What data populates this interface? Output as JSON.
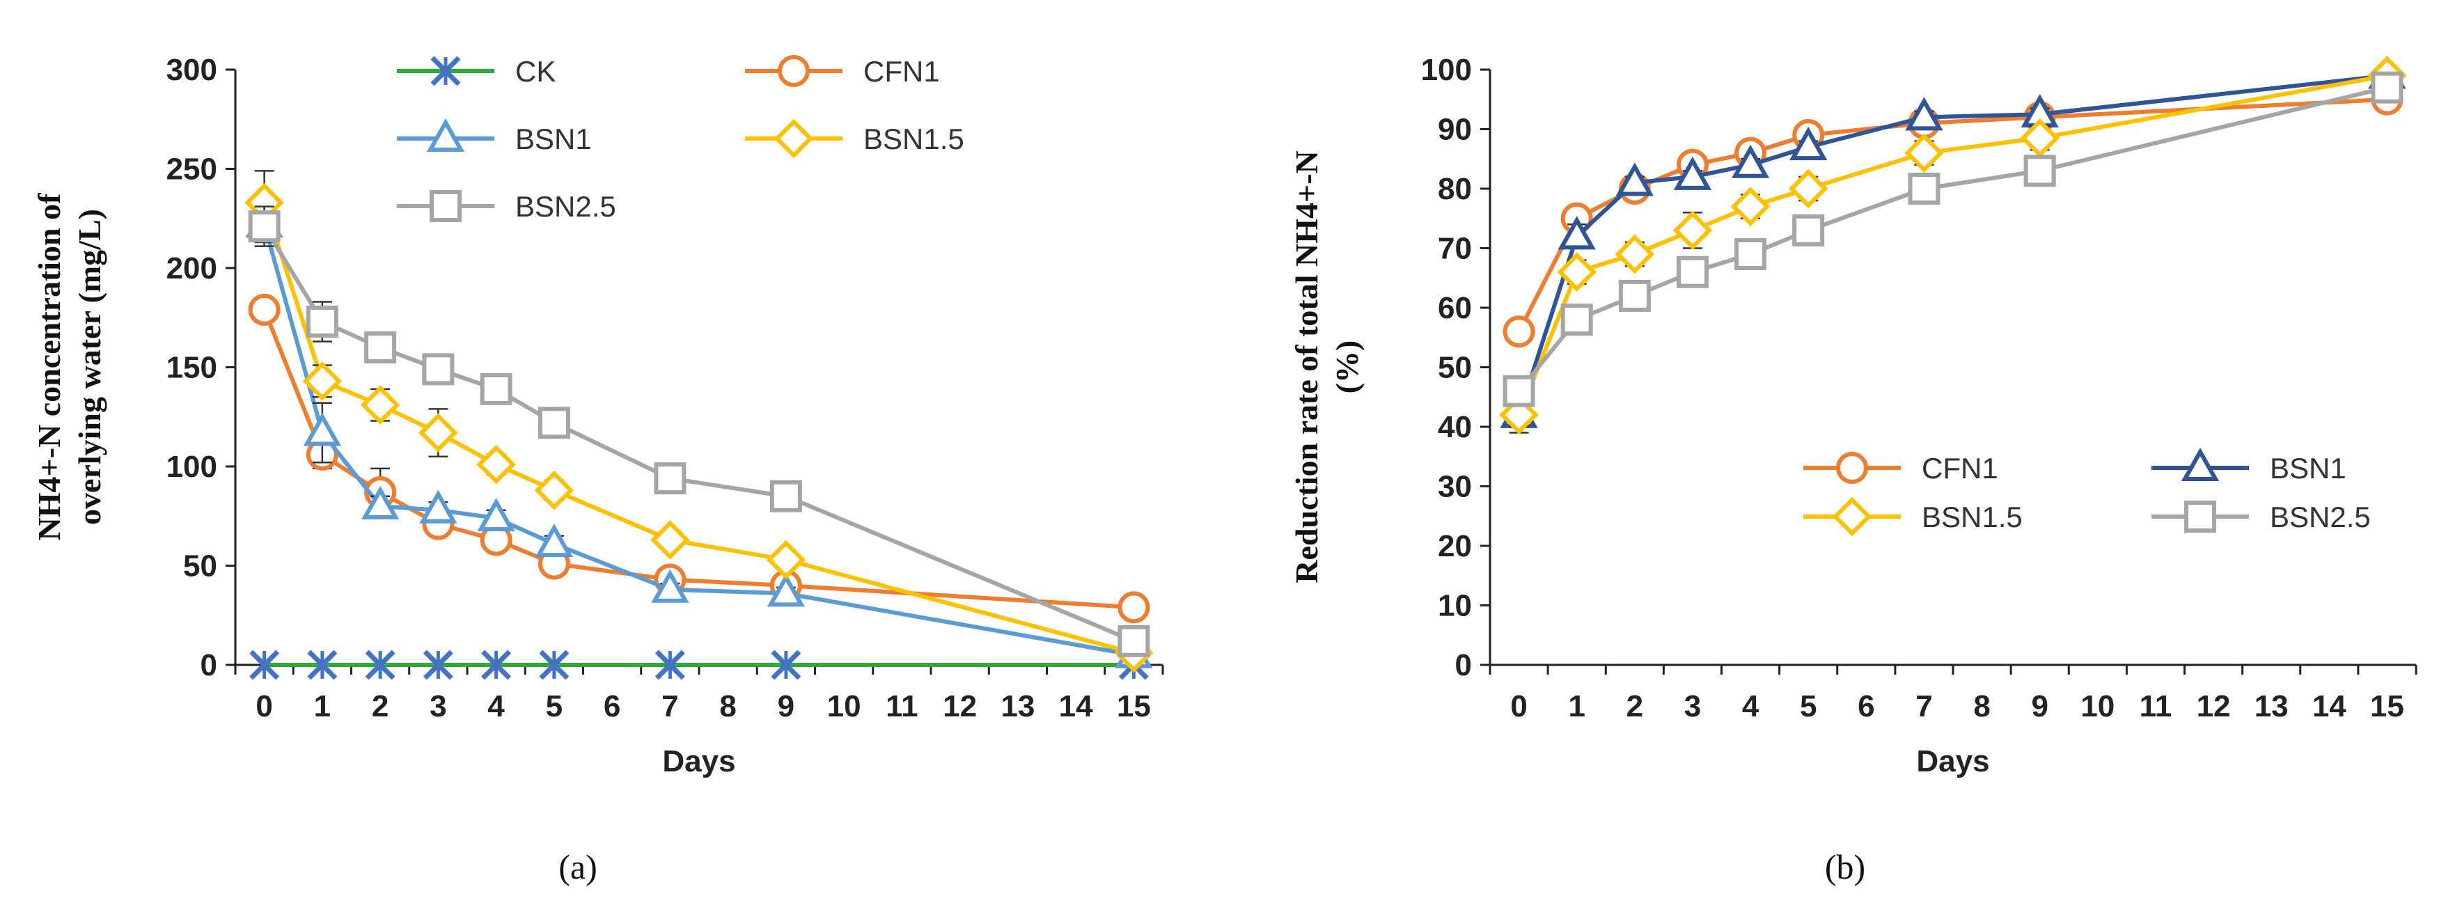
{
  "chart_data": [
    {
      "type": "line",
      "panel_label": "(a)",
      "xlabel": "Days",
      "ylabel_line1": "NH4+-N concentration of",
      "ylabel_line2": "overlying water (mg/L)",
      "categories": [
        "0",
        "1",
        "2",
        "3",
        "4",
        "5",
        "6",
        "7",
        "8",
        "9",
        "10",
        "11",
        "12",
        "13",
        "14",
        "15"
      ],
      "yticks": [
        "0",
        "50",
        "100",
        "150",
        "200",
        "250",
        "300"
      ],
      "ylim": [
        0,
        300
      ],
      "legend_position": "top",
      "series": [
        {
          "name": "CK",
          "color": "#2DAA3A",
          "marker": "x",
          "marker_color": "#4472C4",
          "x": [
            0,
            1,
            2,
            3,
            4,
            5,
            7,
            9,
            15
          ],
          "values": [
            0,
            0,
            0,
            0,
            0,
            0,
            0,
            0,
            0
          ],
          "err": [
            0,
            0,
            0,
            0,
            0,
            0,
            0,
            0,
            0
          ]
        },
        {
          "name": "CFN1",
          "color": "#ED7D31",
          "marker": "circle",
          "x": [
            0,
            1,
            2,
            3,
            4,
            5,
            7,
            9,
            15
          ],
          "values": [
            179,
            106,
            87,
            71,
            63,
            51,
            43,
            40,
            29
          ],
          "err": [
            0,
            7,
            12,
            5,
            5,
            3,
            4,
            3,
            2
          ]
        },
        {
          "name": "BSN1",
          "color": "#5B9BD5",
          "marker": "triangle",
          "x": [
            0,
            1,
            2,
            3,
            4,
            5,
            7,
            9,
            15
          ],
          "values": [
            222,
            117,
            80,
            78,
            74,
            61,
            38,
            36,
            5
          ],
          "err": [
            9,
            15,
            5,
            4,
            4,
            4,
            3,
            3,
            1
          ]
        },
        {
          "name": "BSN1.5",
          "color": "#FFC000",
          "marker": "diamond",
          "x": [
            0,
            1,
            2,
            3,
            4,
            5,
            7,
            9,
            15
          ],
          "values": [
            233,
            143,
            131,
            117,
            101,
            88,
            63,
            53,
            6
          ],
          "err": [
            16,
            8,
            8,
            12,
            5,
            5,
            4,
            4,
            1
          ]
        },
        {
          "name": "BSN2.5",
          "color": "#A5A5A5",
          "marker": "square",
          "x": [
            0,
            1,
            2,
            3,
            4,
            5,
            7,
            9,
            15
          ],
          "values": [
            221,
            173,
            160,
            149,
            139,
            122,
            94,
            85,
            12
          ],
          "err": [
            10,
            10,
            4,
            5,
            4,
            4,
            4,
            3,
            2
          ]
        }
      ]
    },
    {
      "type": "line",
      "panel_label": "(b)",
      "xlabel": "Days",
      "ylabel_line1": "Reduction rate of total NH4+-N",
      "ylabel_line2": "(%)",
      "categories": [
        "0",
        "1",
        "2",
        "3",
        "4",
        "5",
        "6",
        "7",
        "8",
        "9",
        "10",
        "11",
        "12",
        "13",
        "14",
        "15"
      ],
      "yticks": [
        "0",
        "10",
        "20",
        "30",
        "40",
        "50",
        "60",
        "70",
        "80",
        "90",
        "100"
      ],
      "ylim": [
        0,
        100
      ],
      "legend_position": "bottom-right",
      "series": [
        {
          "name": "CFN1",
          "color": "#ED7D31",
          "marker": "circle",
          "x": [
            0,
            1,
            2,
            3,
            4,
            5,
            7,
            9,
            15
          ],
          "values": [
            56,
            75,
            80,
            84,
            86,
            89,
            91,
            92,
            95
          ],
          "err": [
            1,
            1,
            2,
            1,
            1,
            1,
            1,
            1,
            1
          ]
        },
        {
          "name": "BSN1",
          "color": "#2F5597",
          "marker": "triangle",
          "x": [
            0,
            1,
            2,
            3,
            4,
            5,
            7,
            9,
            15
          ],
          "values": [
            42,
            72,
            81,
            82,
            84,
            87,
            92,
            92.5,
            99
          ],
          "err": [
            3,
            2,
            1,
            1,
            1,
            1,
            1,
            1,
            1
          ]
        },
        {
          "name": "BSN1.5",
          "color": "#FFC000",
          "marker": "diamond",
          "x": [
            0,
            1,
            2,
            3,
            4,
            5,
            7,
            9,
            15
          ],
          "values": [
            42,
            66,
            69,
            73,
            77,
            80,
            86,
            88.5,
            99
          ],
          "err": [
            2,
            2,
            2,
            3,
            2,
            2,
            2,
            2,
            1
          ]
        },
        {
          "name": "BSN2.5",
          "color": "#A5A5A5",
          "marker": "square",
          "x": [
            0,
            1,
            2,
            3,
            4,
            5,
            7,
            9,
            15
          ],
          "values": [
            46,
            58,
            62,
            66,
            69,
            73,
            80,
            83,
            97
          ],
          "err": [
            2,
            1,
            1,
            1,
            1,
            1,
            1,
            1,
            1
          ]
        }
      ]
    }
  ]
}
